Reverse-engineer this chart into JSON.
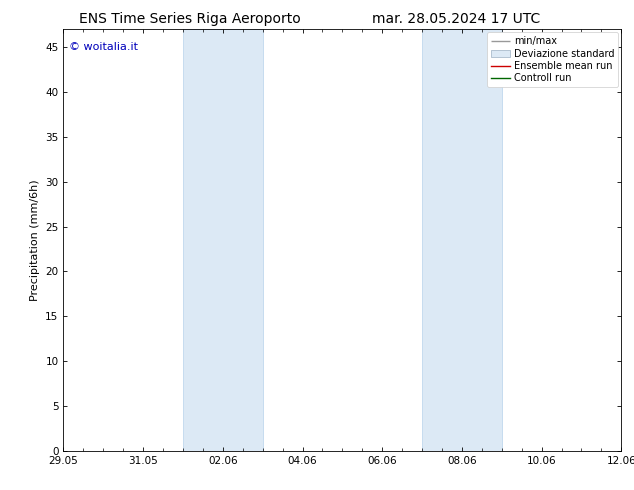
{
  "title_left": "ENS Time Series Riga Aeroporto",
  "title_right": "mar. 28.05.2024 17 UTC",
  "ylabel": "Precipitation (mm/6h)",
  "watermark": "© woitalia.it",
  "watermark_color": "#0000bb",
  "ylim": [
    0,
    47
  ],
  "yticks": [
    0,
    5,
    10,
    15,
    20,
    25,
    30,
    35,
    40,
    45
  ],
  "xlim_days": [
    0,
    14
  ],
  "xtick_labels": [
    "29.05",
    "31.05",
    "02.06",
    "04.06",
    "06.06",
    "08.06",
    "10.06",
    "12.06"
  ],
  "xtick_days": [
    0,
    2,
    4,
    6,
    8,
    10,
    12,
    14
  ],
  "shaded_bands": [
    {
      "start_day": 3.0,
      "end_day": 5.0
    },
    {
      "start_day": 9.0,
      "end_day": 11.0
    }
  ],
  "shaded_color": "#dce9f5",
  "shaded_edge_color": "#c0d8ee",
  "background_color": "#ffffff",
  "legend_labels": [
    "min/max",
    "Deviazione standard",
    "Ensemble mean run",
    "Controll run"
  ],
  "legend_colors": [
    "#999999",
    "#ccddee",
    "#cc0000",
    "#006600"
  ],
  "title_fontsize": 10,
  "axis_fontsize": 8,
  "tick_fontsize": 7.5,
  "legend_fontsize": 7
}
